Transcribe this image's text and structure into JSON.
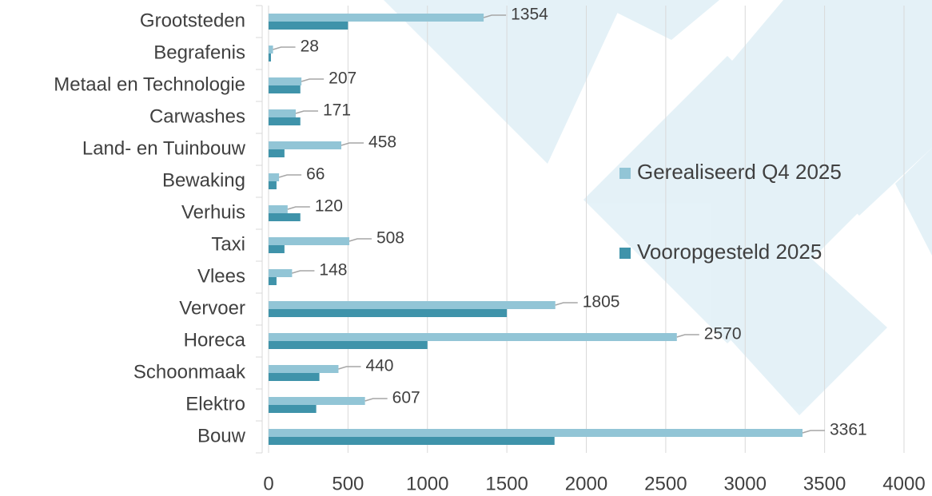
{
  "chart_data": {
    "type": "bar",
    "orientation": "horizontal",
    "categories": [
      "Grootsteden",
      "Begrafenis",
      "Metaal en Technologie",
      "Carwashes",
      "Land- en Tuinbouw",
      "Bewaking",
      "Verhuis",
      "Taxi",
      "Vlees",
      "Vervoer",
      "Horeca",
      "Schoonmaak",
      "Elektro",
      "Bouw"
    ],
    "series": [
      {
        "name": "Gerealiseerd Q4 2025",
        "color": "#92c5d6",
        "values": [
          1354,
          28,
          207,
          171,
          458,
          66,
          120,
          508,
          148,
          1805,
          2570,
          440,
          607,
          3361
        ]
      },
      {
        "name": "Vooropgesteld 2025",
        "color": "#3f93aa",
        "values": [
          500,
          15,
          200,
          200,
          100,
          50,
          200,
          100,
          50,
          1500,
          1000,
          320,
          300,
          1800
        ]
      }
    ],
    "xlim": [
      0,
      4000
    ],
    "xticks": [
      0,
      500,
      1000,
      1500,
      2000,
      2500,
      3000,
      3500,
      4000
    ],
    "grid": true,
    "legend": "right"
  }
}
